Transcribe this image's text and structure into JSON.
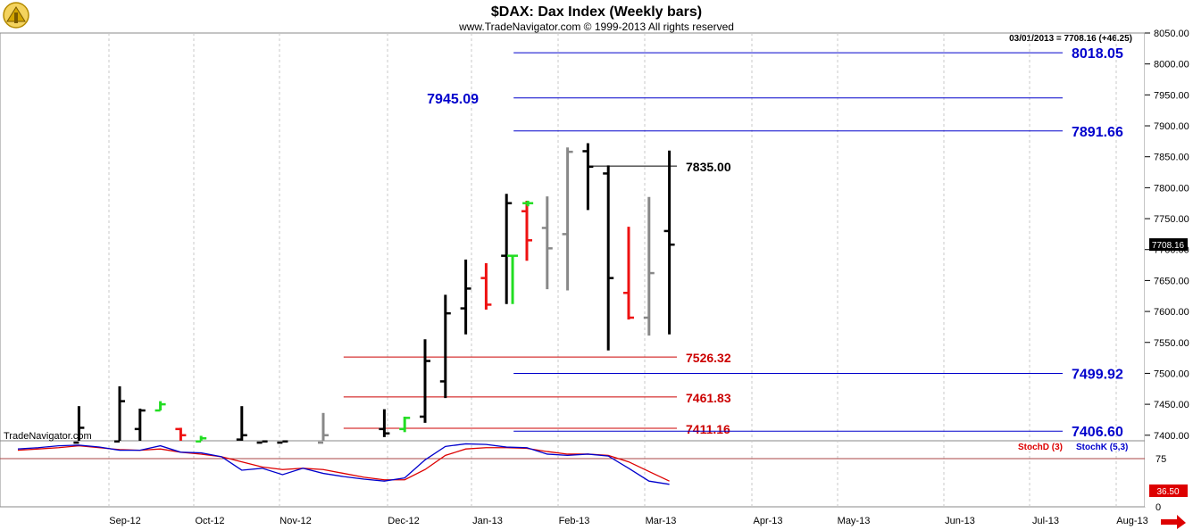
{
  "header": {
    "title": "$DAX:  Dax Index  (Weekly bars)",
    "subtitle": "www.TradeNavigator.com © 1999-2013 All rights reserved",
    "last_bar_readout": "03/01/2013 = 7708.16 (+46.25)",
    "brand": "TradeNavigator.com"
  },
  "colors": {
    "up": "#000000",
    "down_red": "#ee1111",
    "gray": "#888888",
    "green": "#22dd22",
    "blue_level": "#0000cc",
    "red_level": "#cc0000",
    "stoch_d": "#dd0000",
    "stoch_k": "#0000cc"
  },
  "chart_data": [
    {
      "type": "ohlc",
      "title": "$DAX:  Dax Index  (Weekly bars)",
      "ylim": [
        7390,
        8050
      ],
      "y_ticks": [
        8050,
        8000,
        7950,
        7900,
        7850,
        7800,
        7750,
        7700,
        7650,
        7600,
        7550,
        7500,
        7450,
        7400
      ],
      "y_tick_labels": [
        "8050.00",
        "8000.00",
        "7950.00",
        "7900.00",
        "7850.00",
        "7800.00",
        "7750.00",
        "7700.00",
        "7650.00",
        "7600.00",
        "7550.00",
        "7500.00",
        "7450.00",
        "7400.00"
      ],
      "x_labels": [
        "Sep-12",
        "Oct-12",
        "Nov-12",
        "Dec-12",
        "Jan-13",
        "Feb-13",
        "Mar-13",
        "Apr-13",
        "May-13",
        "Jun-13",
        "Jul-13",
        "Aug-13"
      ],
      "last_price_label": "7708.16",
      "last_price": 7708.16,
      "bars": [
        {
          "week": 3,
          "o": 7388,
          "h": 7447,
          "l": 7388,
          "c": 7412,
          "color": "up"
        },
        {
          "week": 5,
          "o": 7390,
          "h": 7479,
          "l": 7388,
          "c": 7455,
          "color": "up"
        },
        {
          "week": 6,
          "o": 7410,
          "h": 7443,
          "l": 7390,
          "c": 7440,
          "color": "up"
        },
        {
          "week": 7,
          "o": 7440,
          "h": 7455,
          "l": 7440,
          "c": 7450,
          "color": "green"
        },
        {
          "week": 8,
          "o": 7410,
          "h": 7412,
          "l": 7388,
          "c": 7400,
          "color": "down_red"
        },
        {
          "week": 9,
          "o": 7390,
          "h": 7399,
          "l": 7388,
          "c": 7395,
          "color": "green"
        },
        {
          "week": 11,
          "o": 7393,
          "h": 7447,
          "l": 7388,
          "c": 7400,
          "color": "up"
        },
        {
          "week": 12,
          "o": 7388,
          "h": 7391,
          "l": 7388,
          "c": 7390,
          "color": "up"
        },
        {
          "week": 13,
          "o": 7388,
          "h": 7391,
          "l": 7388,
          "c": 7390,
          "color": "up"
        },
        {
          "week": 15,
          "o": 7388,
          "h": 7436,
          "l": 7388,
          "c": 7400,
          "color": "gray"
        },
        {
          "week": 18,
          "o": 7410,
          "h": 7442,
          "l": 7397,
          "c": 7403,
          "color": "up"
        },
        {
          "week": 19,
          "o": 7410,
          "h": 7430,
          "l": 7405,
          "c": 7428,
          "color": "green"
        },
        {
          "week": 20,
          "o": 7430,
          "h": 7555,
          "l": 7420,
          "c": 7520,
          "color": "up"
        },
        {
          "week": 21,
          "o": 7487,
          "h": 7627,
          "l": 7460,
          "c": 7597,
          "color": "up"
        },
        {
          "week": 22,
          "o": 7605,
          "h": 7684,
          "l": 7563,
          "c": 7637,
          "color": "up"
        },
        {
          "week": 23,
          "o": 7654,
          "h": 7678,
          "l": 7603,
          "c": 7611,
          "color": "down_red"
        },
        {
          "week": 24,
          "o": 7690,
          "h": 7790,
          "l": 7612,
          "c": 7775,
          "color": "up"
        },
        {
          "week": 24.3,
          "o": 7690,
          "h": 7690,
          "l": 7612,
          "c": 7690,
          "color": "green"
        },
        {
          "week": 25,
          "o": 7762,
          "h": 7779,
          "l": 7682,
          "c": 7715,
          "color": "down_red"
        },
        {
          "week": 25.05,
          "o": 7775,
          "h": 7779,
          "l": 7770,
          "c": 7775,
          "color": "green"
        },
        {
          "week": 26,
          "o": 7735,
          "h": 7786,
          "l": 7636,
          "c": 7702,
          "color": "gray"
        },
        {
          "week": 27,
          "o": 7725,
          "h": 7865,
          "l": 7634,
          "c": 7858,
          "color": "gray"
        },
        {
          "week": 28,
          "o": 7859,
          "h": 7872,
          "l": 7764,
          "c": 7834,
          "color": "up"
        },
        {
          "week": 29,
          "o": 7823,
          "h": 7836,
          "l": 7537,
          "c": 7654,
          "color": "up"
        },
        {
          "week": 30,
          "o": 7630,
          "h": 7737,
          "l": 7587,
          "c": 7590,
          "color": "down_red"
        },
        {
          "week": 31,
          "o": 7590,
          "h": 7785,
          "l": 7561,
          "c": 7662,
          "color": "gray"
        },
        {
          "week": 32,
          "o": 7730,
          "h": 7860,
          "l": 7563,
          "c": 7708,
          "color": "up"
        }
      ],
      "levels": [
        {
          "value": 8018.05,
          "label": "8018.05",
          "color": "blue_level",
          "x_from_week": 24,
          "x_to_week": 51
        },
        {
          "value": 7945.09,
          "label": "7945.09",
          "color": "blue_level",
          "x_from_week": 24,
          "x_to_week": 51,
          "label_side": "left"
        },
        {
          "value": 7891.66,
          "label": "7891.66",
          "color": "blue_level",
          "x_from_week": 24,
          "x_to_week": 51
        },
        {
          "value": 7835.0,
          "label": "7835.00",
          "color": "up",
          "x_from_week": 28,
          "x_to_week": 32
        },
        {
          "value": 7526.32,
          "label": "7526.32",
          "color": "red_level",
          "x_from_week": 16,
          "x_to_week": 32
        },
        {
          "value": 7499.92,
          "label": "7499.92",
          "color": "blue_level",
          "x_from_week": 24,
          "x_to_week": 51
        },
        {
          "value": 7461.83,
          "label": "7461.83",
          "color": "red_level",
          "x_from_week": 16,
          "x_to_week": 32
        },
        {
          "value": 7411.16,
          "label": "7411.16",
          "color": "red_level",
          "x_from_week": 16,
          "x_to_week": 32
        },
        {
          "value": 7406.6,
          "label": "7406.60",
          "color": "blue_level",
          "x_from_week": 24,
          "x_to_week": 51
        }
      ]
    },
    {
      "type": "line",
      "legend": [
        "StochD (3)",
        "StochK (5,3)"
      ],
      "ylim": [
        0,
        100
      ],
      "y_ticks": [
        75,
        0
      ],
      "reference_line": 75,
      "last_value_label": "36.50",
      "series": [
        {
          "name": "StochD (3)",
          "color": "stoch_d",
          "x": [
            0,
            1,
            2,
            3,
            4,
            5,
            6,
            7,
            8,
            9,
            10,
            11,
            12,
            13,
            14,
            15,
            16,
            17,
            18,
            19,
            20,
            21,
            22,
            23,
            24,
            25,
            26,
            27,
            28,
            29,
            30,
            31,
            32
          ],
          "values": [
            88,
            90,
            92,
            95,
            92,
            89,
            88,
            90,
            85,
            82,
            78,
            70,
            62,
            58,
            60,
            58,
            52,
            46,
            42,
            42,
            58,
            80,
            90,
            92,
            92,
            91,
            86,
            82,
            82,
            80,
            70,
            55,
            40
          ]
        },
        {
          "name": "StochK (5,3)",
          "color": "stoch_k",
          "x": [
            0,
            1,
            2,
            3,
            4,
            5,
            6,
            7,
            8,
            9,
            10,
            11,
            12,
            13,
            14,
            15,
            16,
            17,
            18,
            19,
            20,
            21,
            22,
            23,
            24,
            25,
            26,
            27,
            28,
            29,
            30,
            31,
            32
          ],
          "values": [
            90,
            92,
            95,
            96,
            93,
            88,
            88,
            95,
            85,
            84,
            78,
            57,
            60,
            50,
            60,
            52,
            47,
            43,
            40,
            45,
            73,
            94,
            98,
            97,
            93,
            92,
            82,
            80,
            82,
            79,
            60,
            40,
            35
          ]
        }
      ]
    }
  ]
}
